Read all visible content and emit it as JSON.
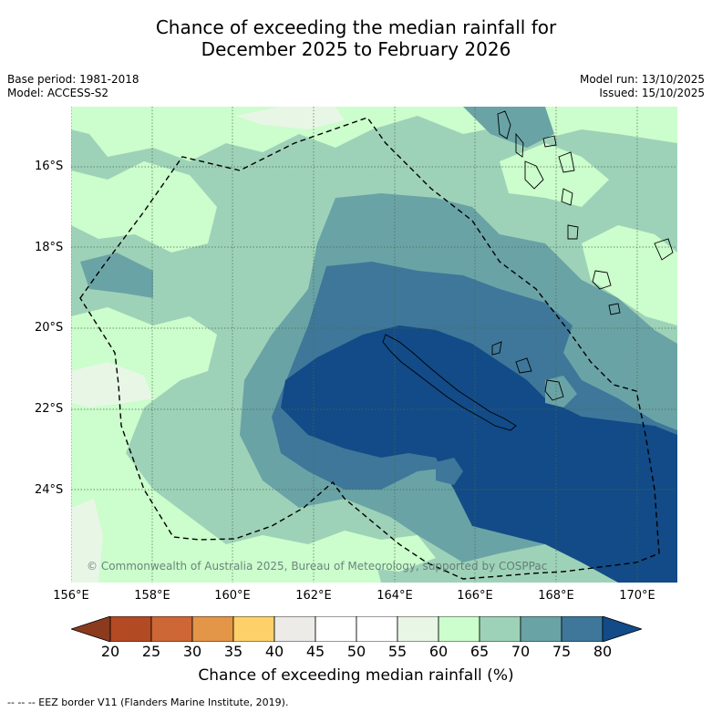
{
  "title": {
    "line1": "Chance of exceeding the median rainfall for",
    "line2": "December 2025 to February 2026"
  },
  "meta": {
    "base_period": "Base period: 1981-2018",
    "model": "Model: ACCESS-S2",
    "model_run": "Model run: 13/10/2025",
    "issued": "Issued: 15/10/2025"
  },
  "axes": {
    "lat_labels": [
      "16°S",
      "18°S",
      "20°S",
      "22°S",
      "24°S"
    ],
    "lon_labels": [
      "156°E",
      "158°E",
      "160°E",
      "162°E",
      "164°E",
      "166°E",
      "168°E",
      "170°E"
    ]
  },
  "copyright": "© Commonwealth of Australia 2025, Bureau of Meteorology, supported by COSPPac",
  "colorbar": {
    "title": "Chance of exceeding median rainfall (%)",
    "ticks": [
      "20",
      "25",
      "30",
      "35",
      "40",
      "45",
      "50",
      "55",
      "60",
      "65",
      "70",
      "75",
      "80"
    ],
    "colors": [
      "#8b3a1e",
      "#b24a24",
      "#cd6735",
      "#e39548",
      "#fdd06a",
      "#ecebe7",
      "#ffffff",
      "#ffffff",
      "#e8f6e6",
      "#ccfdcc",
      "#9ed2b8",
      "#6aa3a6",
      "#3e7799",
      "#124b87"
    ]
  },
  "footnote": "-- -- -- EEZ border V11 (Flanders Marine Institute, 2019)."
}
